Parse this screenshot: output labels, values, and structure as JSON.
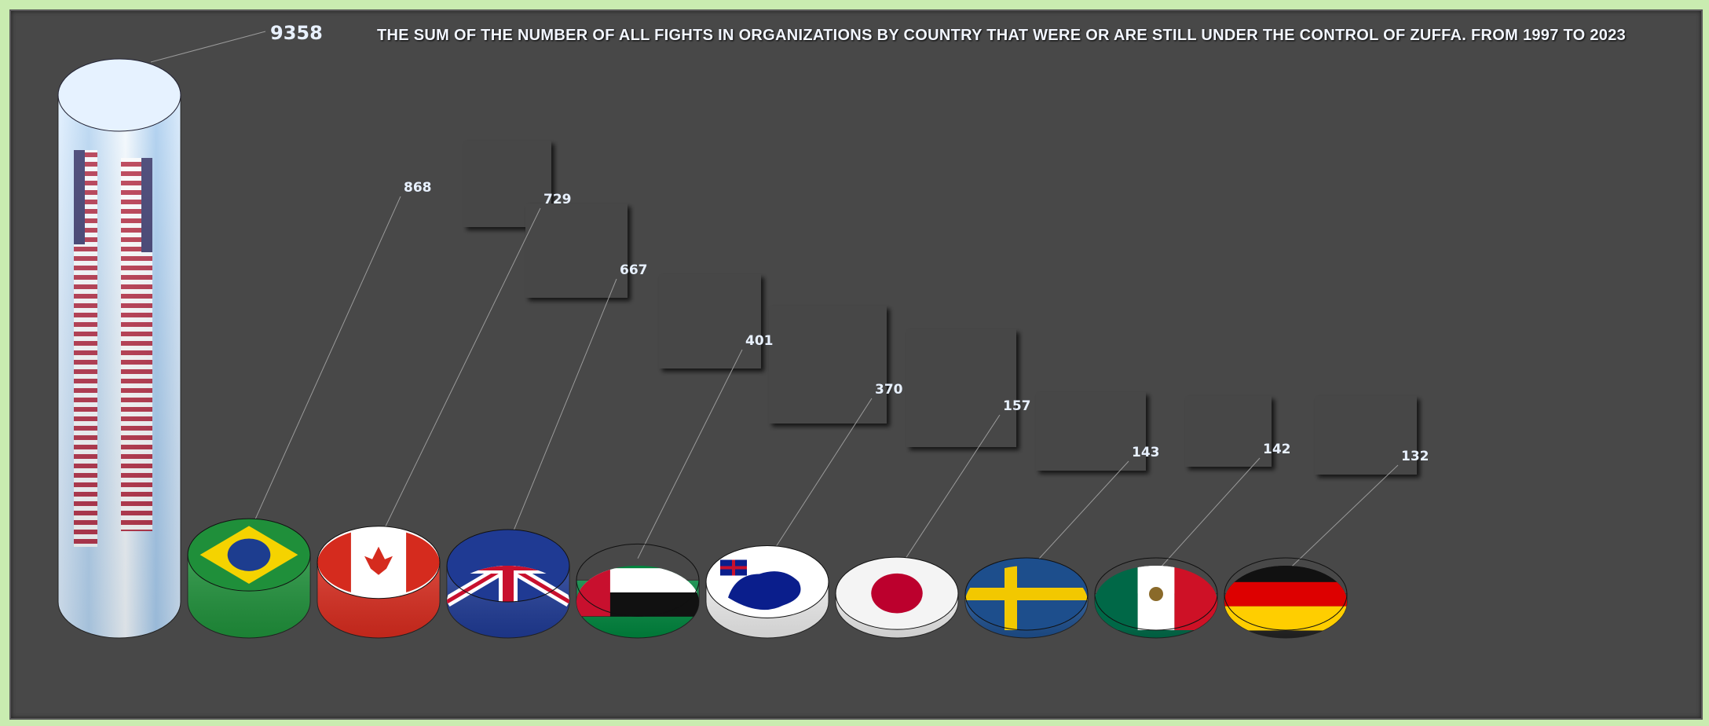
{
  "chart_data": {
    "type": "bar",
    "title": "THE SUM OF THE NUMBER OF ALL FIGHTS IN ORGANIZATIONS BY COUNTRY  THAT WERE OR ARE STILL UNDER THE CONTROL OF ZUFFA. FROM 1997 TO 2023",
    "categories": [
      "USA",
      "Brazil",
      "Canada",
      "United Kingdom",
      "UAE",
      "Australia",
      "Japan",
      "Sweden",
      "Mexico",
      "Germany"
    ],
    "values": [
      9358,
      868,
      729,
      667,
      401,
      370,
      157,
      143,
      142,
      132
    ],
    "category_icons": [
      "usa-flag",
      "brazil-flag",
      "canada-flag",
      "uk-flag",
      "uae-flag",
      "australia-flag",
      "japan-flag",
      "sweden-flag",
      "mexico-flag",
      "germany-flag"
    ],
    "xlabel": "",
    "ylabel": "",
    "ylim": [
      0,
      9358
    ],
    "grid": false,
    "legend": "none",
    "colors": {
      "background": "#484848",
      "outer": "#c9ecb0",
      "label_text": "#e8f1ff",
      "leader_line": "#9a9a9a"
    }
  }
}
